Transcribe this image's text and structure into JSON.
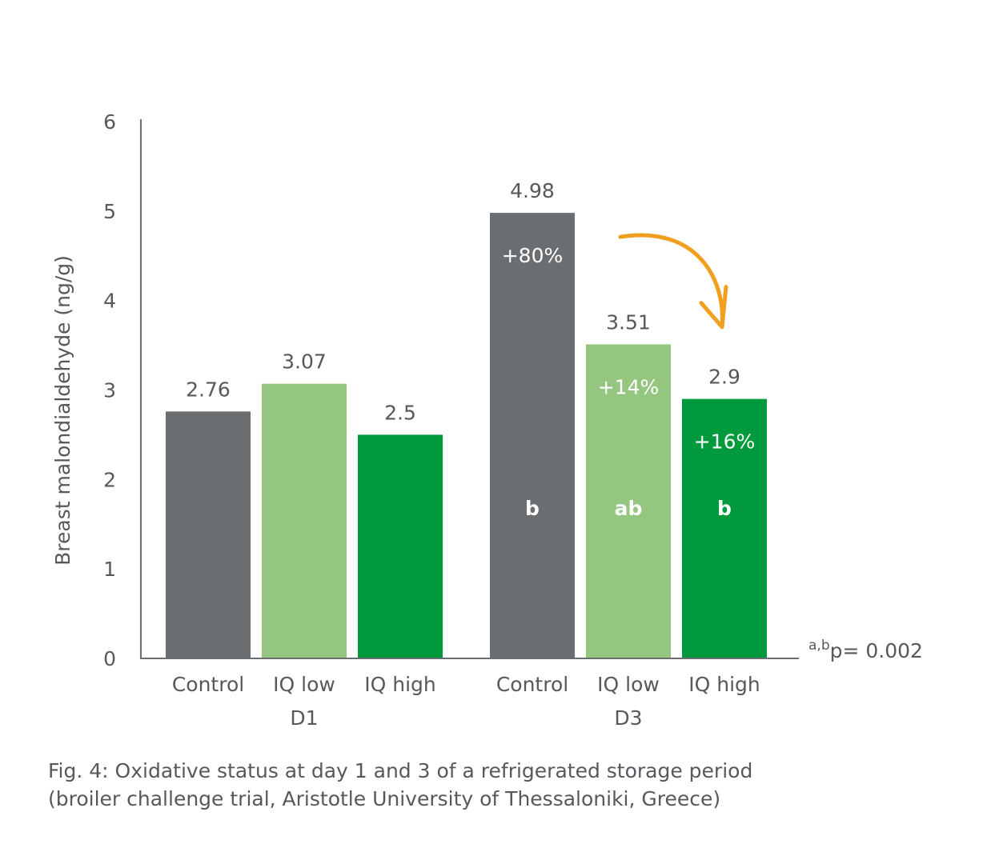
{
  "chart_data": {
    "type": "bar",
    "ylabel": "Breast malondialdehyde (ng/g)",
    "ylim": [
      0,
      6
    ],
    "yticks": [
      0,
      1,
      2,
      3,
      4,
      5,
      6
    ],
    "grid": false,
    "groups": [
      {
        "label": "D1",
        "bars": [
          {
            "category": "Control",
            "value": 2.76,
            "value_label": "2.76",
            "color": "#6b6e71"
          },
          {
            "category": "IQ low",
            "value": 3.07,
            "value_label": "3.07",
            "color": "#94c67f"
          },
          {
            "category": "IQ high",
            "value": 2.5,
            "value_label": "2.5",
            "color": "#009a3d"
          }
        ]
      },
      {
        "label": "D3",
        "bars": [
          {
            "category": "Control",
            "value": 4.98,
            "value_label": "4.98",
            "color": "#6b6e71",
            "change": "+80%",
            "significance": "b"
          },
          {
            "category": "IQ low",
            "value": 3.51,
            "value_label": "3.51",
            "color": "#94c67f",
            "change": "+14%",
            "significance": "ab"
          },
          {
            "category": "IQ high",
            "value": 2.9,
            "value_label": "2.9",
            "color": "#009a3d",
            "change": "+16%",
            "significance": "b"
          }
        ]
      }
    ],
    "pvalue": {
      "superscript": "a,b",
      "text": "p= 0.002"
    },
    "arrow_color": "#f0a01e"
  },
  "caption": {
    "line1": "Fig. 4: Oxidative status at day 1 and 3 of a refrigerated storage period",
    "line2": "(broiler challenge trial,  Aristotle University of Thessaloniki, Greece)"
  }
}
